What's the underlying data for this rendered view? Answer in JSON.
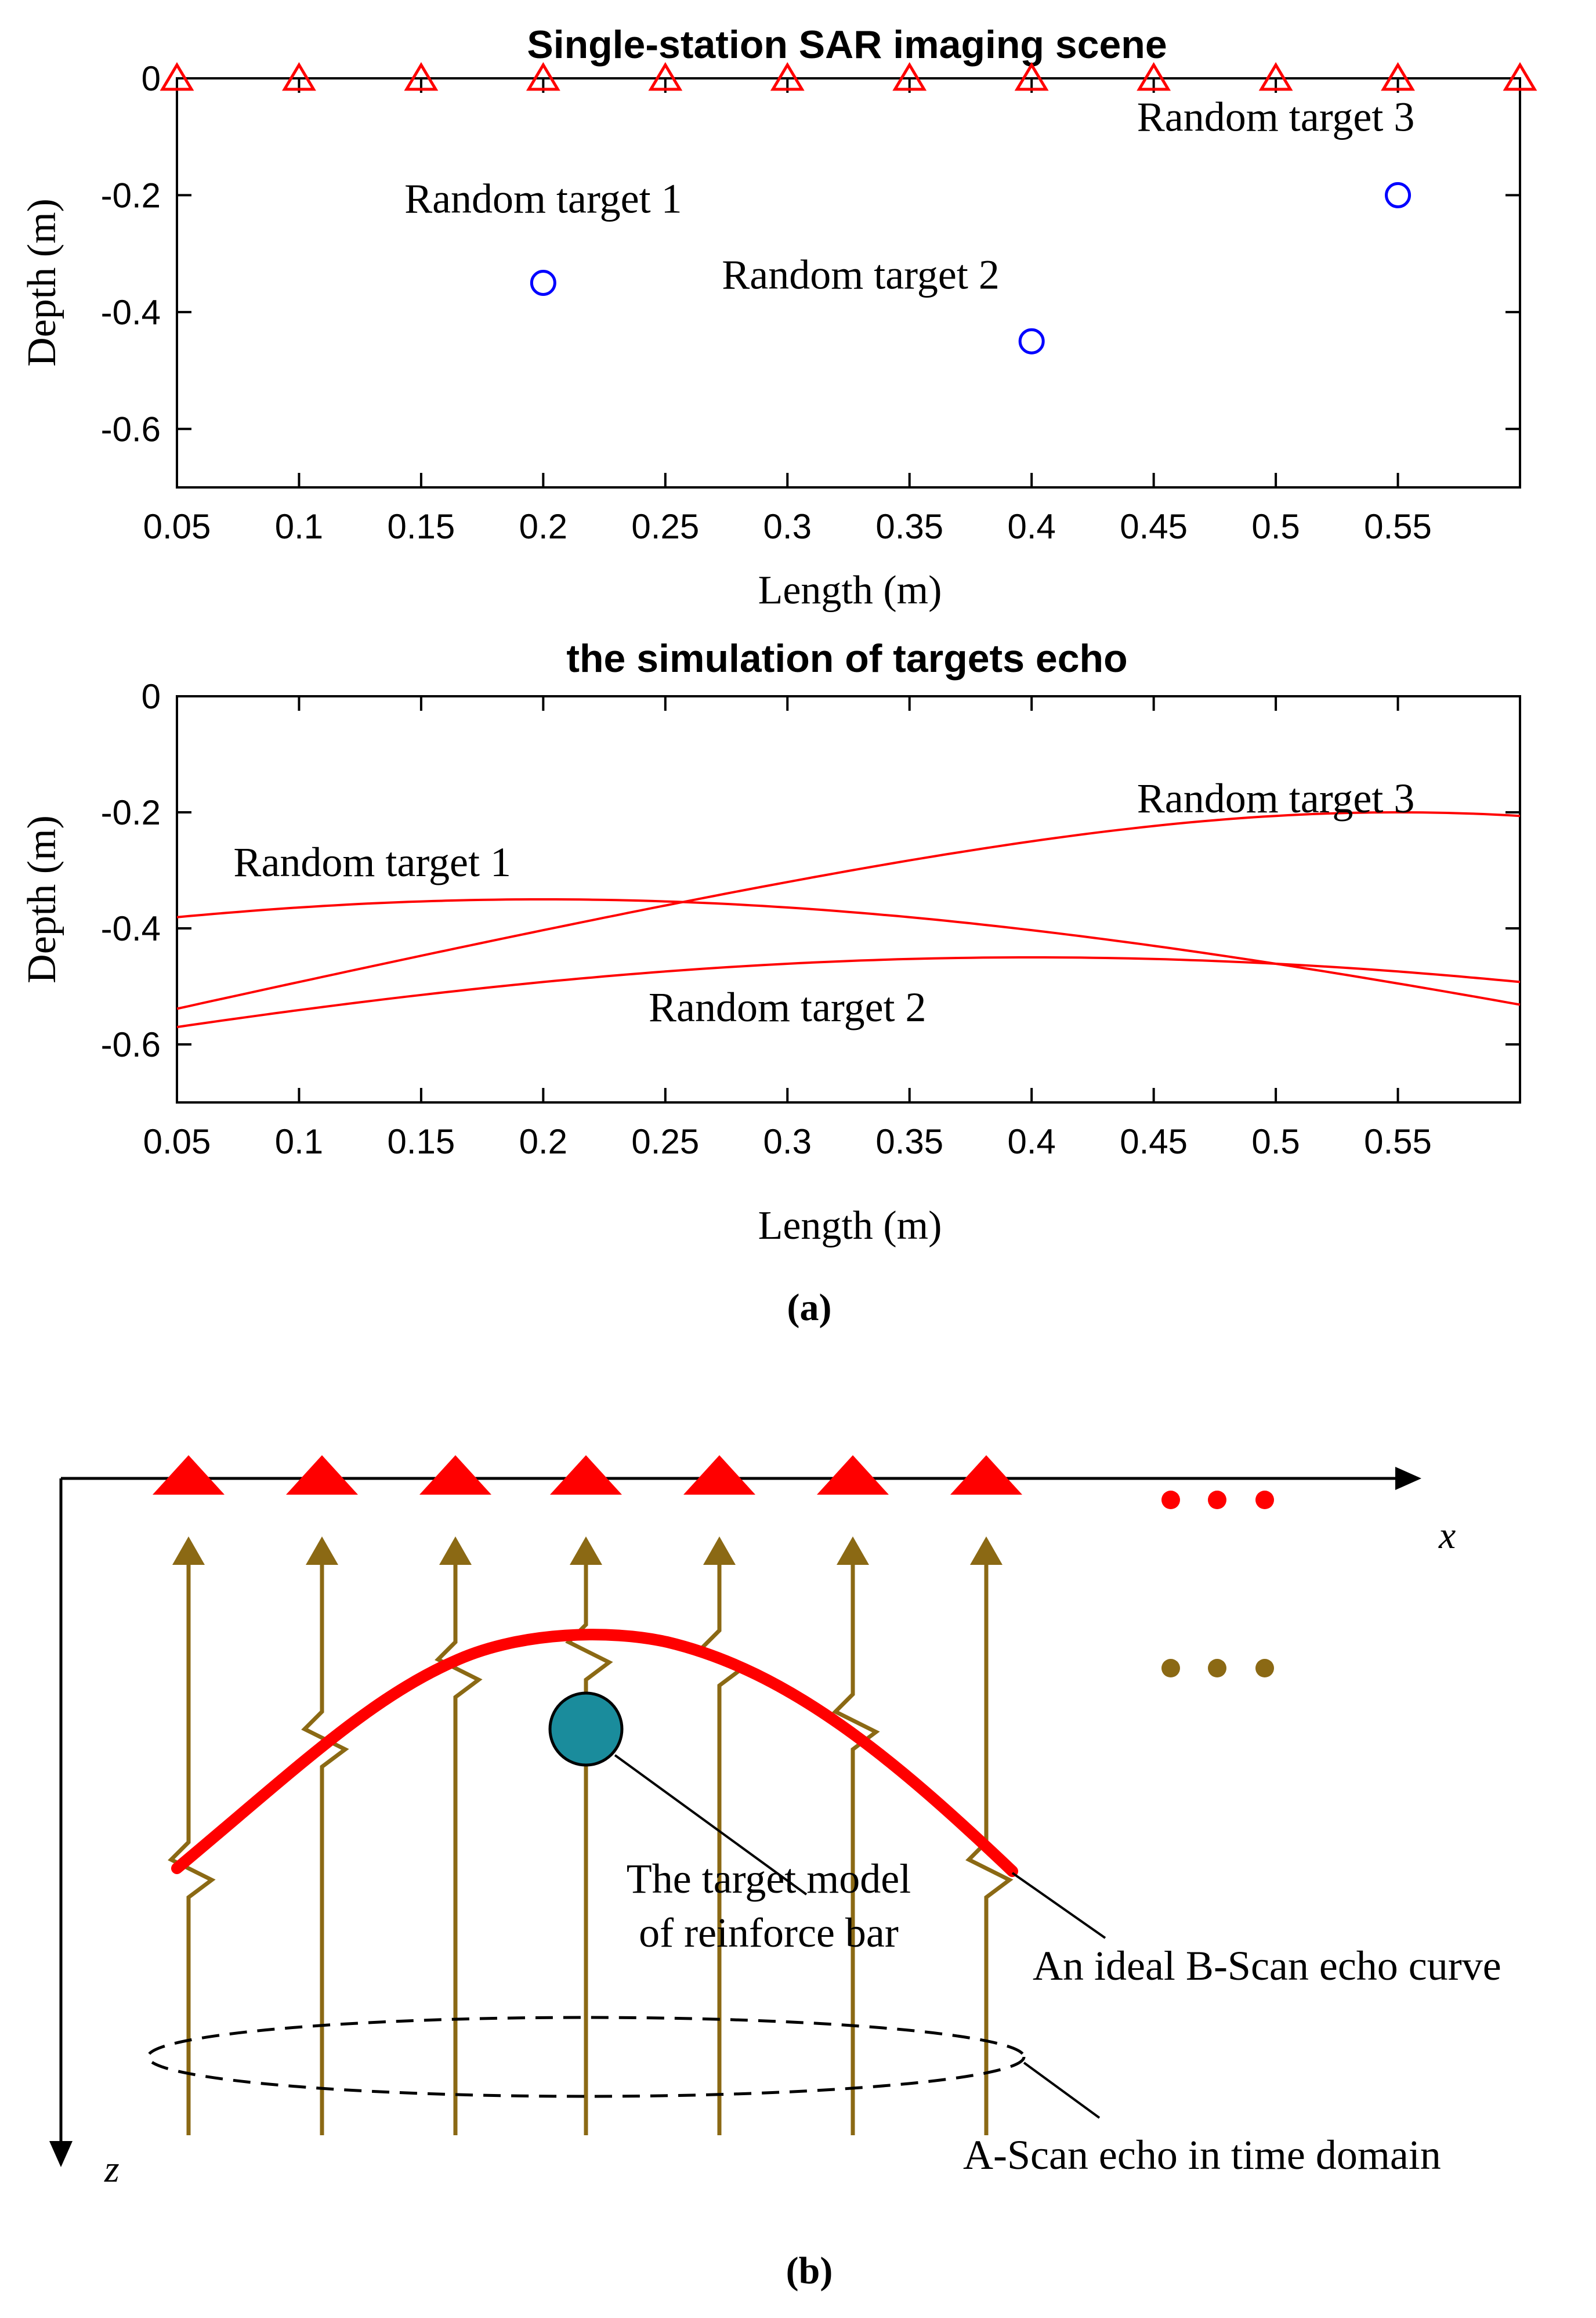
{
  "chart_data": [
    {
      "type": "scatter",
      "title": "Single-station SAR imaging scene",
      "xlabel": "Length (m)",
      "ylabel": "Depth  (m)",
      "xlim": [
        0.05,
        0.6
      ],
      "ylim": [
        -0.7,
        0
      ],
      "x_ticks": [
        0.05,
        0.1,
        0.15,
        0.2,
        0.25,
        0.3,
        0.35,
        0.4,
        0.45,
        0.5,
        0.55
      ],
      "x_tick_labels": [
        "0.05",
        "0.1",
        "0.15",
        "0.2",
        "0.25",
        "0.3",
        "0.35",
        "0.4",
        "0.45",
        "0.5",
        "0.55"
      ],
      "y_ticks": [
        0,
        -0.2,
        -0.4,
        -0.6
      ],
      "y_tick_labels": [
        "0",
        "-0.2",
        "-0.4",
        "-0.6"
      ],
      "series": [
        {
          "name": "Antenna positions",
          "marker": "triangle",
          "color": "#ff0000",
          "x": [
            0.05,
            0.1,
            0.15,
            0.2,
            0.25,
            0.3,
            0.35,
            0.4,
            0.45,
            0.5,
            0.55,
            0.6
          ],
          "y": [
            0,
            0,
            0,
            0,
            0,
            0,
            0,
            0,
            0,
            0,
            0,
            0
          ]
        },
        {
          "name": "Targets",
          "marker": "circle",
          "color": "#0000ff",
          "x": [
            0.2,
            0.4,
            0.55
          ],
          "y": [
            -0.35,
            -0.45,
            -0.2
          ]
        }
      ],
      "annotations": [
        {
          "text": "Random target 1",
          "x": 0.2,
          "y": -0.23
        },
        {
          "text": "Random target 2",
          "x": 0.33,
          "y": -0.36
        },
        {
          "text": "Random target 3",
          "x": 0.5,
          "y": -0.09
        }
      ]
    },
    {
      "type": "line",
      "title": "the simulation of targets echo",
      "xlabel": "Length (m)",
      "ylabel": "Depth  (m)",
      "xlim": [
        0.05,
        0.6
      ],
      "ylim": [
        -0.7,
        0
      ],
      "x_ticks": [
        0.05,
        0.1,
        0.15,
        0.2,
        0.25,
        0.3,
        0.35,
        0.4,
        0.45,
        0.5,
        0.55
      ],
      "x_tick_labels": [
        "0.05",
        "0.1",
        "0.15",
        "0.2",
        "0.25",
        "0.3",
        "0.35",
        "0.4",
        "0.45",
        "0.5",
        "0.55"
      ],
      "y_ticks": [
        0,
        -0.2,
        -0.4,
        -0.6
      ],
      "y_tick_labels": [
        "0",
        "-0.2",
        "-0.4",
        "-0.6"
      ],
      "line_color": "#ff0000",
      "series": [
        {
          "name": "Random target 1",
          "target_x": 0.2,
          "target_depth": 0.35
        },
        {
          "name": "Random target 2",
          "target_x": 0.4,
          "target_depth": 0.45
        },
        {
          "name": "Random target 3",
          "target_x": 0.55,
          "target_depth": 0.2
        }
      ],
      "annotations": [
        {
          "text": "Random target 1",
          "x": 0.13,
          "y": -0.31
        },
        {
          "text": "Random target 2",
          "x": 0.3,
          "y": -0.56
        },
        {
          "text": "Random target 3",
          "x": 0.5,
          "y": -0.2
        }
      ]
    }
  ],
  "captions": {
    "a": "(a)",
    "b": "(b)"
  },
  "diagram": {
    "x_axis_label": "x",
    "z_axis_label": "z",
    "antenna_color": "#ff0000",
    "trace_color": "#8b6914",
    "curve_color": "#ff0000",
    "target_color": "#1a8c9c",
    "ellipsis_antennas": "• • •",
    "ellipsis_traces": "• • •",
    "labels": {
      "target_model_line1": "The target model",
      "target_model_line2": "of reinforce bar",
      "b_scan": "An ideal B-Scan echo curve",
      "a_scan": "A-Scan echo in time domain"
    }
  }
}
